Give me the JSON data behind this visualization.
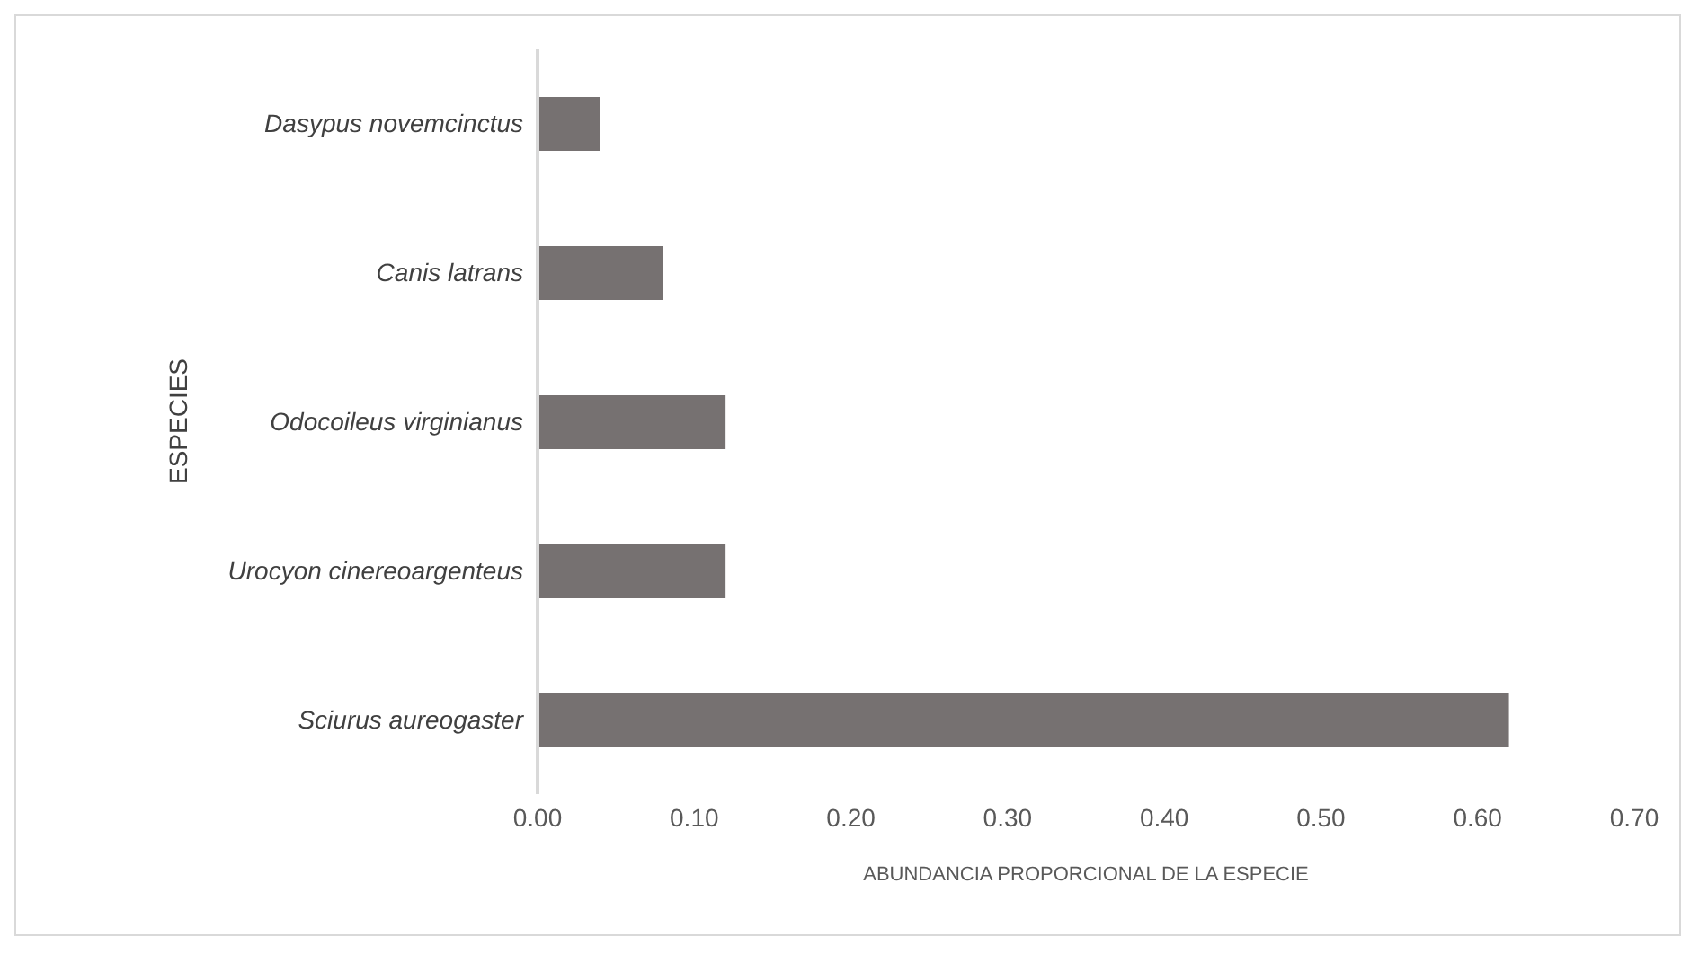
{
  "chart_data": {
    "type": "bar",
    "orientation": "horizontal",
    "xlabel": "ABUNDANCIA PROPORCIONAL DE LA ESPECIE",
    "ylabel": "ESPECIES",
    "categories": [
      "Dasypus novemcinctus",
      "Canis latrans",
      "Odocoileus virginianus",
      "Urocyon cinereoargenteus",
      "Sciurus aureogaster"
    ],
    "values": [
      0.04,
      0.08,
      0.12,
      0.12,
      0.62
    ],
    "color": "#767171",
    "xlim": [
      0,
      0.7
    ],
    "xticks": [
      {
        "value": 0,
        "label": "0.00"
      },
      {
        "value": 0.1,
        "label": "0.10"
      },
      {
        "value": 0.2,
        "label": "0.20"
      },
      {
        "value": 0.3,
        "label": "0.30"
      },
      {
        "value": 0.4,
        "label": "0.40"
      },
      {
        "value": 0.5,
        "label": "0.50"
      },
      {
        "value": 0.6,
        "label": "0.60"
      },
      {
        "value": 0.7,
        "label": "0.70"
      }
    ],
    "grid": false
  }
}
